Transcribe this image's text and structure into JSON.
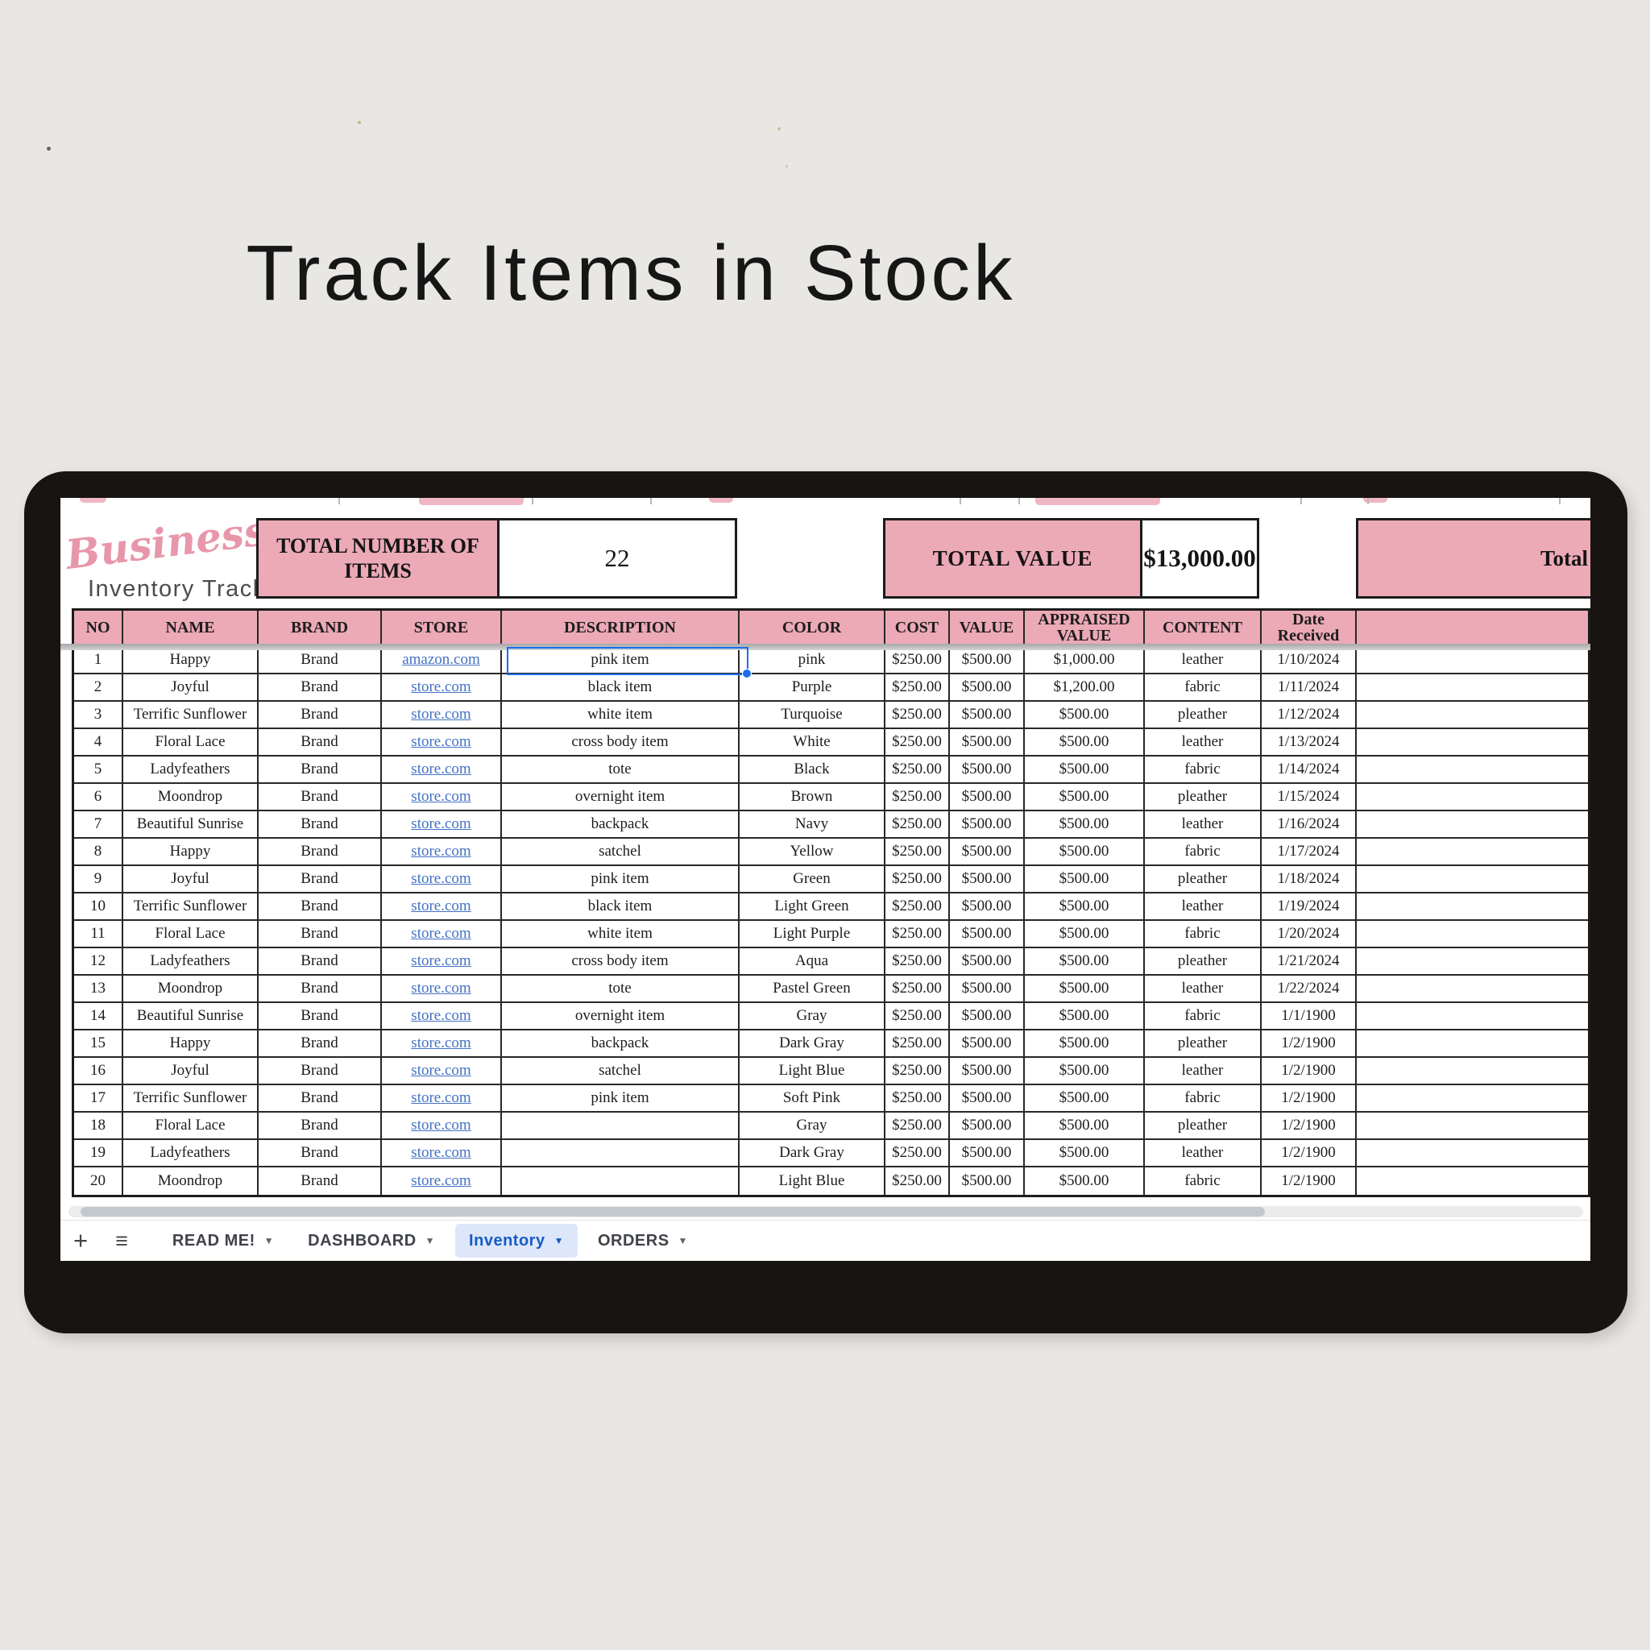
{
  "page": {
    "title": "Track Items in Stock"
  },
  "logo": {
    "script": "Business",
    "subtitle": "Inventory Tracker"
  },
  "summary": {
    "total_items_label": "TOTAL NUMBER OF ITEMS",
    "total_items_value": "22",
    "total_value_label": "TOTAL VALUE",
    "total_value_amount": "$13,000.00",
    "right_partial_label": "Total"
  },
  "table": {
    "columns": [
      "NO",
      "NAME",
      "BRAND",
      "STORE",
      "DESCRIPTION",
      "COLOR",
      "COST",
      "VALUE",
      "APPRAISED VALUE",
      "CONTENT",
      "Date Received"
    ],
    "column_keys": [
      "no",
      "name",
      "brand",
      "store",
      "description",
      "color",
      "cost",
      "value",
      "appraised-value",
      "content",
      "date-received"
    ],
    "selected_cell": {
      "row": 1,
      "column": "DESCRIPTION"
    },
    "rows": [
      [
        "1",
        "Happy",
        "Brand",
        "amazon.com",
        "pink item",
        "pink",
        "$250.00",
        "$500.00",
        "$1,000.00",
        "leather",
        "1/10/2024"
      ],
      [
        "2",
        "Joyful",
        "Brand",
        "store.com",
        "black item",
        "Purple",
        "$250.00",
        "$500.00",
        "$1,200.00",
        "fabric",
        "1/11/2024"
      ],
      [
        "3",
        "Terrific Sunflower",
        "Brand",
        "store.com",
        "white item",
        "Turquoise",
        "$250.00",
        "$500.00",
        "$500.00",
        "pleather",
        "1/12/2024"
      ],
      [
        "4",
        "Floral Lace",
        "Brand",
        "store.com",
        "cross body item",
        "White",
        "$250.00",
        "$500.00",
        "$500.00",
        "leather",
        "1/13/2024"
      ],
      [
        "5",
        "Ladyfeathers",
        "Brand",
        "store.com",
        "tote",
        "Black",
        "$250.00",
        "$500.00",
        "$500.00",
        "fabric",
        "1/14/2024"
      ],
      [
        "6",
        "Moondrop",
        "Brand",
        "store.com",
        "overnight item",
        "Brown",
        "$250.00",
        "$500.00",
        "$500.00",
        "pleather",
        "1/15/2024"
      ],
      [
        "7",
        "Beautiful Sunrise",
        "Brand",
        "store.com",
        "backpack",
        "Navy",
        "$250.00",
        "$500.00",
        "$500.00",
        "leather",
        "1/16/2024"
      ],
      [
        "8",
        "Happy",
        "Brand",
        "store.com",
        "satchel",
        "Yellow",
        "$250.00",
        "$500.00",
        "$500.00",
        "fabric",
        "1/17/2024"
      ],
      [
        "9",
        "Joyful",
        "Brand",
        "store.com",
        "pink item",
        "Green",
        "$250.00",
        "$500.00",
        "$500.00",
        "pleather",
        "1/18/2024"
      ],
      [
        "10",
        "Terrific Sunflower",
        "Brand",
        "store.com",
        "black item",
        "Light Green",
        "$250.00",
        "$500.00",
        "$500.00",
        "leather",
        "1/19/2024"
      ],
      [
        "11",
        "Floral Lace",
        "Brand",
        "store.com",
        "white item",
        "Light Purple",
        "$250.00",
        "$500.00",
        "$500.00",
        "fabric",
        "1/20/2024"
      ],
      [
        "12",
        "Ladyfeathers",
        "Brand",
        "store.com",
        "cross body item",
        "Aqua",
        "$250.00",
        "$500.00",
        "$500.00",
        "pleather",
        "1/21/2024"
      ],
      [
        "13",
        "Moondrop",
        "Brand",
        "store.com",
        "tote",
        "Pastel Green",
        "$250.00",
        "$500.00",
        "$500.00",
        "leather",
        "1/22/2024"
      ],
      [
        "14",
        "Beautiful Sunrise",
        "Brand",
        "store.com",
        "overnight item",
        "Gray",
        "$250.00",
        "$500.00",
        "$500.00",
        "fabric",
        "1/1/1900"
      ],
      [
        "15",
        "Happy",
        "Brand",
        "store.com",
        "backpack",
        "Dark Gray",
        "$250.00",
        "$500.00",
        "$500.00",
        "pleather",
        "1/2/1900"
      ],
      [
        "16",
        "Joyful",
        "Brand",
        "store.com",
        "satchel",
        "Light Blue",
        "$250.00",
        "$500.00",
        "$500.00",
        "leather",
        "1/2/1900"
      ],
      [
        "17",
        "Terrific Sunflower",
        "Brand",
        "store.com",
        "pink item",
        "Soft Pink",
        "$250.00",
        "$500.00",
        "$500.00",
        "fabric",
        "1/2/1900"
      ],
      [
        "18",
        "Floral Lace",
        "Brand",
        "store.com",
        "",
        "Gray",
        "$250.00",
        "$500.00",
        "$500.00",
        "pleather",
        "1/2/1900"
      ],
      [
        "19",
        "Ladyfeathers",
        "Brand",
        "store.com",
        "",
        "Dark Gray",
        "$250.00",
        "$500.00",
        "$500.00",
        "leather",
        "1/2/1900"
      ],
      [
        "20",
        "Moondrop",
        "Brand",
        "store.com",
        "",
        "Light Blue",
        "$250.00",
        "$500.00",
        "$500.00",
        "fabric",
        "1/2/1900"
      ]
    ]
  },
  "sheet_tabs": {
    "items": [
      {
        "label": "READ ME!",
        "active": false
      },
      {
        "label": "DASHBOARD",
        "active": false
      },
      {
        "label": "Inventory",
        "active": true
      },
      {
        "label": "ORDERS",
        "active": false
      }
    ]
  },
  "icons": {
    "add_sheet": "+",
    "all_sheets": "≡",
    "tab_dropdown": "▼"
  },
  "colors": {
    "accent_pink": "#ECA9B6",
    "link_blue": "#4472C4",
    "selection_blue": "#1A6EF0",
    "active_tab_blue": "#175BC4",
    "frame_black": "#171411",
    "page_bg": "#E9E7E4"
  }
}
